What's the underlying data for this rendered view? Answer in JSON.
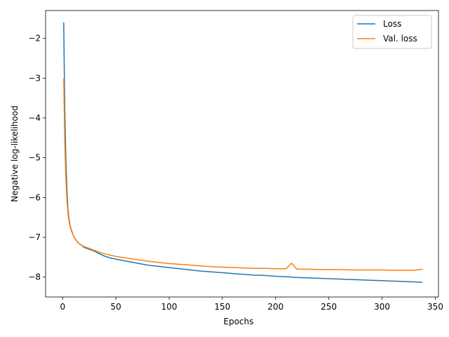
{
  "chart_data": {
    "type": "line",
    "xlabel": "Epochs",
    "ylabel": "Negative log-likelihood",
    "xlim": [
      -16,
      353
    ],
    "ylim": [
      -8.5,
      -1.3
    ],
    "xticks": [
      0,
      50,
      100,
      150,
      200,
      250,
      300,
      350
    ],
    "yticks": [
      -8,
      -7,
      -6,
      -5,
      -4,
      -3,
      -2
    ],
    "ytick_labels": [
      "−8",
      "−7",
      "−6",
      "−5",
      "−4",
      "−3",
      "−2"
    ],
    "xtick_labels": [
      "0",
      "50",
      "100",
      "150",
      "200",
      "250",
      "300",
      "350"
    ],
    "grid": false,
    "legend_position": "top-right",
    "series": [
      {
        "name": "Loss",
        "color": "#1f77b4",
        "x": [
          1,
          2,
          3,
          4,
          5,
          6,
          7,
          8,
          10,
          12,
          15,
          18,
          20,
          25,
          30,
          35,
          40,
          45,
          50,
          60,
          70,
          80,
          90,
          100,
          110,
          120,
          130,
          140,
          150,
          160,
          170,
          180,
          190,
          200,
          210,
          220,
          230,
          240,
          250,
          260,
          270,
          280,
          290,
          300,
          310,
          320,
          330,
          338
        ],
        "y": [
          -1.6,
          -3.8,
          -5.0,
          -5.8,
          -6.3,
          -6.55,
          -6.7,
          -6.8,
          -6.95,
          -7.05,
          -7.15,
          -7.2,
          -7.25,
          -7.3,
          -7.35,
          -7.42,
          -7.48,
          -7.52,
          -7.55,
          -7.6,
          -7.65,
          -7.7,
          -7.73,
          -7.76,
          -7.79,
          -7.82,
          -7.85,
          -7.87,
          -7.89,
          -7.91,
          -7.93,
          -7.95,
          -7.96,
          -7.98,
          -7.99,
          -8.01,
          -8.02,
          -8.03,
          -8.04,
          -8.05,
          -8.06,
          -8.07,
          -8.08,
          -8.09,
          -8.1,
          -8.11,
          -8.12,
          -8.13
        ]
      },
      {
        "name": "Val. loss",
        "color": "#ff7f0e",
        "x": [
          1,
          2,
          3,
          4,
          5,
          6,
          7,
          8,
          10,
          12,
          15,
          18,
          20,
          25,
          30,
          35,
          40,
          45,
          50,
          60,
          70,
          80,
          90,
          100,
          110,
          120,
          130,
          140,
          150,
          160,
          170,
          180,
          190,
          200,
          210,
          215,
          220,
          230,
          240,
          250,
          260,
          270,
          280,
          290,
          300,
          310,
          320,
          330,
          338
        ],
        "y": [
          -3.0,
          -4.6,
          -5.5,
          -6.05,
          -6.4,
          -6.6,
          -6.72,
          -6.82,
          -6.95,
          -7.05,
          -7.15,
          -7.2,
          -7.23,
          -7.28,
          -7.33,
          -7.38,
          -7.42,
          -7.45,
          -7.48,
          -7.52,
          -7.56,
          -7.6,
          -7.63,
          -7.66,
          -7.68,
          -7.7,
          -7.72,
          -7.74,
          -7.75,
          -7.76,
          -7.77,
          -7.78,
          -7.78,
          -7.79,
          -7.79,
          -7.65,
          -7.8,
          -7.8,
          -7.81,
          -7.81,
          -7.81,
          -7.82,
          -7.82,
          -7.82,
          -7.82,
          -7.83,
          -7.83,
          -7.83,
          -7.8
        ]
      }
    ]
  }
}
